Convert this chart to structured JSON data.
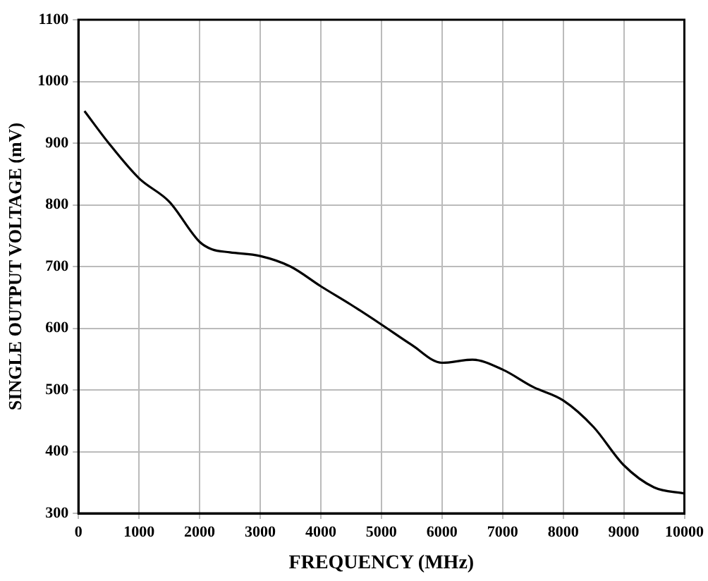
{
  "chart_data": {
    "type": "line",
    "xlabel": "FREQUENCY (MHz)",
    "ylabel": "SINGLE OUTPUT VOLTAGE (mV)",
    "x": [
      100,
      500,
      1000,
      1500,
      2000,
      2200,
      2500,
      3000,
      3500,
      4000,
      4500,
      5000,
      5500,
      6000,
      6500,
      7000,
      7500,
      8000,
      8500,
      9000,
      9500,
      10000
    ],
    "series": [
      {
        "color": "#000000",
        "values": [
          952,
          900,
          843,
          805,
          740,
          728,
          723,
          717,
          700,
          668,
          638,
          606,
          573,
          544,
          549,
          533,
          505,
          483,
          440,
          378,
          342,
          332
        ]
      }
    ],
    "xlim": [
      0,
      10000
    ],
    "xticks": [
      0,
      1000,
      2000,
      3000,
      4000,
      5000,
      6000,
      7000,
      8000,
      9000,
      10000
    ],
    "ylim": [
      300,
      1100
    ],
    "yticks": [
      300,
      400,
      500,
      600,
      700,
      800,
      900,
      1000,
      1100
    ],
    "grid": true,
    "legend": false,
    "marker": "none",
    "line_style": "solid"
  }
}
